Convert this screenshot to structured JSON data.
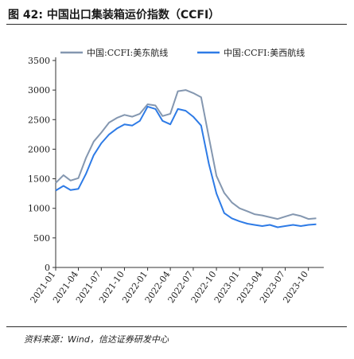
{
  "header": {
    "title": "图 42:  中国出口集装箱运价指数（CCFI）"
  },
  "footer": {
    "source": "资料来源：Wind，信达证券研发中心"
  },
  "chart_data": {
    "type": "line",
    "title": "",
    "xlabel": "",
    "ylabel": "",
    "ylim": [
      0,
      3500
    ],
    "yticks": [
      0,
      500,
      1000,
      1500,
      2000,
      2500,
      3000,
      3500
    ],
    "xticks": [
      "2021-01",
      "2021-04",
      "2021-07",
      "2021-10",
      "2022-01",
      "2022-04",
      "2022-07",
      "2022-10",
      "2023-01",
      "2023-04",
      "2023-07",
      "2023-10"
    ],
    "grid": false,
    "legend_position": "top",
    "series": [
      {
        "name": "中国:CCFI:美东航线",
        "color": "#8497b0",
        "x": [
          "2021-01",
          "2021-02",
          "2021-03",
          "2021-04",
          "2021-05",
          "2021-06",
          "2021-07",
          "2021-08",
          "2021-09",
          "2021-10",
          "2021-11",
          "2021-12",
          "2022-01",
          "2022-02",
          "2022-03",
          "2022-04",
          "2022-05",
          "2022-06",
          "2022-07",
          "2022-08",
          "2022-09",
          "2022-10",
          "2022-11",
          "2022-12",
          "2023-01",
          "2023-02",
          "2023-03",
          "2023-04",
          "2023-05",
          "2023-06",
          "2023-07",
          "2023-08",
          "2023-09",
          "2023-10",
          "2023-11"
        ],
        "values": [
          1430,
          1560,
          1470,
          1510,
          1850,
          2130,
          2280,
          2450,
          2530,
          2580,
          2550,
          2600,
          2760,
          2740,
          2560,
          2600,
          2980,
          3000,
          2950,
          2880,
          2200,
          1550,
          1260,
          1100,
          1000,
          950,
          900,
          880,
          850,
          820,
          860,
          900,
          870,
          820,
          830
        ]
      },
      {
        "name": "中国:CCFI:美西航线",
        "color": "#2e7be6",
        "x": [
          "2021-01",
          "2021-02",
          "2021-03",
          "2021-04",
          "2021-05",
          "2021-06",
          "2021-07",
          "2021-08",
          "2021-09",
          "2021-10",
          "2021-11",
          "2021-12",
          "2022-01",
          "2022-02",
          "2022-03",
          "2022-04",
          "2022-05",
          "2022-06",
          "2022-07",
          "2022-08",
          "2022-09",
          "2022-10",
          "2022-11",
          "2022-12",
          "2023-01",
          "2023-02",
          "2023-03",
          "2023-04",
          "2023-05",
          "2023-06",
          "2023-07",
          "2023-08",
          "2023-09",
          "2023-10",
          "2023-11"
        ],
        "values": [
          1300,
          1380,
          1310,
          1330,
          1580,
          1900,
          2100,
          2250,
          2350,
          2420,
          2400,
          2480,
          2720,
          2680,
          2480,
          2420,
          2680,
          2650,
          2550,
          2400,
          1750,
          1250,
          920,
          830,
          780,
          740,
          720,
          700,
          720,
          680,
          700,
          720,
          700,
          720,
          730
        ]
      }
    ]
  }
}
